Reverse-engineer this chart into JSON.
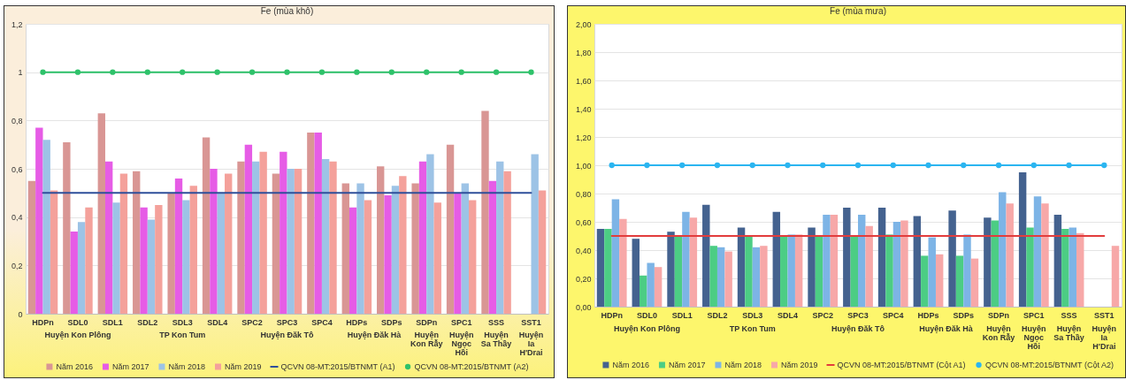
{
  "chart_data": [
    {
      "type": "bar",
      "title": "Fe (mùa khô)",
      "categories": [
        "HDPn",
        "SDL0",
        "SDL1",
        "SDL2",
        "SDL3",
        "SDL4",
        "SPC2",
        "SPC3",
        "SPC4",
        "HDPs",
        "SDPs",
        "SDPn",
        "SPC1",
        "SSS",
        "SST1"
      ],
      "series": [
        {
          "name": "Năm 2016",
          "color": "#d99694",
          "values": [
            0.55,
            0.71,
            0.83,
            0.59,
            0.5,
            0.73,
            0.63,
            0.58,
            0.75,
            0.54,
            0.61,
            0.54,
            0.7,
            0.84,
            null
          ]
        },
        {
          "name": "Năm 2017",
          "color": "#e65ce6",
          "values": [
            0.77,
            0.34,
            0.63,
            0.44,
            0.56,
            0.6,
            0.7,
            0.67,
            0.75,
            0.44,
            0.49,
            0.63,
            0.5,
            0.55,
            null
          ]
        },
        {
          "name": "Năm 2018",
          "color": "#9dc3e6",
          "values": [
            0.72,
            0.38,
            0.46,
            0.39,
            0.47,
            0.5,
            0.63,
            0.6,
            0.64,
            0.54,
            0.53,
            0.66,
            0.54,
            0.63,
            0.66
          ]
        },
        {
          "name": "Năm 2019",
          "color": "#f4a19b",
          "values": [
            0.51,
            0.44,
            0.58,
            0.45,
            0.53,
            0.58,
            0.67,
            0.6,
            0.63,
            0.47,
            0.57,
            0.46,
            0.47,
            0.59,
            0.51
          ]
        },
        {
          "name": "QCVN 08-MT:2015/BTNMT (A1)",
          "type": "line",
          "color": "#2f4f9a",
          "marker": "none",
          "values": [
            0.5,
            0.5,
            0.5,
            0.5,
            0.5,
            0.5,
            0.5,
            0.5,
            0.5,
            0.5,
            0.5,
            0.5,
            0.5,
            0.5,
            0.5
          ]
        },
        {
          "name": "QCVN 08-MT:2015/BTNMT (A2)",
          "type": "line",
          "color": "#2ec26a",
          "marker": "circle",
          "values": [
            1,
            1,
            1,
            1,
            1,
            1,
            1,
            1,
            1,
            1,
            1,
            1,
            1,
            1,
            1
          ]
        }
      ],
      "annotations": [
        "Huyện Kon Plông",
        "TP Kon Tum",
        "Huyện Đăk Tô",
        "Huyện Đăk Hà",
        "Huyện Kon Rẫy",
        "Huyện Ngọc Hồi",
        "Huyện Sa Thầy",
        "Huyện Ia H'Drai"
      ],
      "ylim": [
        0,
        1.2
      ],
      "yticks": [
        0,
        {
          "value": 0.2,
          "label": "0,2"
        },
        {
          "value": 0.4,
          "label": "0,4"
        },
        {
          "value": 0.6,
          "label": "0,6"
        },
        {
          "value": 0.8,
          "label": "0,8"
        },
        1,
        {
          "value": 1.2,
          "label": "1,2"
        }
      ],
      "grid": "y",
      "legend": "bottom"
    },
    {
      "type": "bar",
      "title": "Fe (mùa mưa)",
      "categories": [
        "HDPn",
        "SDL0",
        "SDL1",
        "SDL2",
        "SDL3",
        "SDL4",
        "SPC2",
        "SPC3",
        "SPC4",
        "HDPs",
        "SDPs",
        "SDPn",
        "SPC1",
        "SSS",
        "SST1"
      ],
      "series": [
        {
          "name": "Năm 2016",
          "color": "#44628f",
          "values": [
            0.55,
            0.48,
            0.53,
            0.72,
            0.56,
            0.67,
            0.56,
            0.7,
            0.7,
            0.64,
            0.68,
            0.63,
            0.95,
            0.65,
            null
          ]
        },
        {
          "name": "Năm 2017",
          "color": "#4ccd84",
          "values": [
            0.55,
            0.22,
            0.5,
            0.43,
            0.5,
            0.5,
            0.5,
            0.5,
            0.51,
            0.36,
            0.36,
            0.61,
            0.56,
            0.55,
            null
          ]
        },
        {
          "name": "Năm 2018",
          "color": "#7db4e6",
          "values": [
            0.76,
            0.31,
            0.67,
            0.42,
            0.42,
            0.51,
            0.65,
            0.65,
            0.6,
            0.49,
            0.51,
            0.81,
            0.78,
            0.56,
            null
          ]
        },
        {
          "name": "Năm 2019",
          "color": "#f7a8a8",
          "values": [
            0.62,
            0.28,
            0.63,
            0.39,
            0.43,
            0.51,
            0.65,
            0.57,
            0.61,
            0.37,
            0.34,
            0.73,
            0.73,
            0.52,
            0.43
          ]
        },
        {
          "name": "QCVN 08-MT:2015/BTNMT (Cột A1)",
          "type": "line",
          "color": "#e23c3c",
          "marker": "none",
          "values": [
            0.5,
            0.5,
            0.5,
            0.5,
            0.5,
            0.5,
            0.5,
            0.5,
            0.5,
            0.5,
            0.5,
            0.5,
            0.5,
            0.5,
            0.5
          ]
        },
        {
          "name": "QCVN 08-MT:2015/BTNMT (Cột A2)",
          "type": "line",
          "color": "#2bb5f0",
          "marker": "circle",
          "values": [
            1,
            1,
            1,
            1,
            1,
            1,
            1,
            1,
            1,
            1,
            1,
            1,
            1,
            1,
            1
          ]
        }
      ],
      "annotations": [
        "Huyện Kon Plông",
        "TP Kon Tum",
        "Huyện Đăk Tô",
        "Huyện Đăk Hà",
        "Huyện Kon Rẫy",
        "Huyện Ngọc Hồi",
        "Huyện Sa Thầy",
        "Huyện Ia H'Drai"
      ],
      "ylim": [
        0,
        2
      ],
      "yticks": [
        {
          "value": 0,
          "label": "0,00"
        },
        {
          "value": 0.2,
          "label": "0,20"
        },
        {
          "value": 0.4,
          "label": "0,40"
        },
        {
          "value": 0.6,
          "label": "0,60"
        },
        {
          "value": 0.8,
          "label": "0,80"
        },
        {
          "value": 1,
          "label": "1,00"
        },
        {
          "value": 1.2,
          "label": "1,20"
        },
        {
          "value": 1.4,
          "label": "1,40"
        },
        {
          "value": 1.6,
          "label": "1,60"
        },
        {
          "value": 1.8,
          "label": "1,80"
        },
        {
          "value": 2,
          "label": "2,00"
        }
      ],
      "grid": "y",
      "legend": "bottom"
    }
  ]
}
